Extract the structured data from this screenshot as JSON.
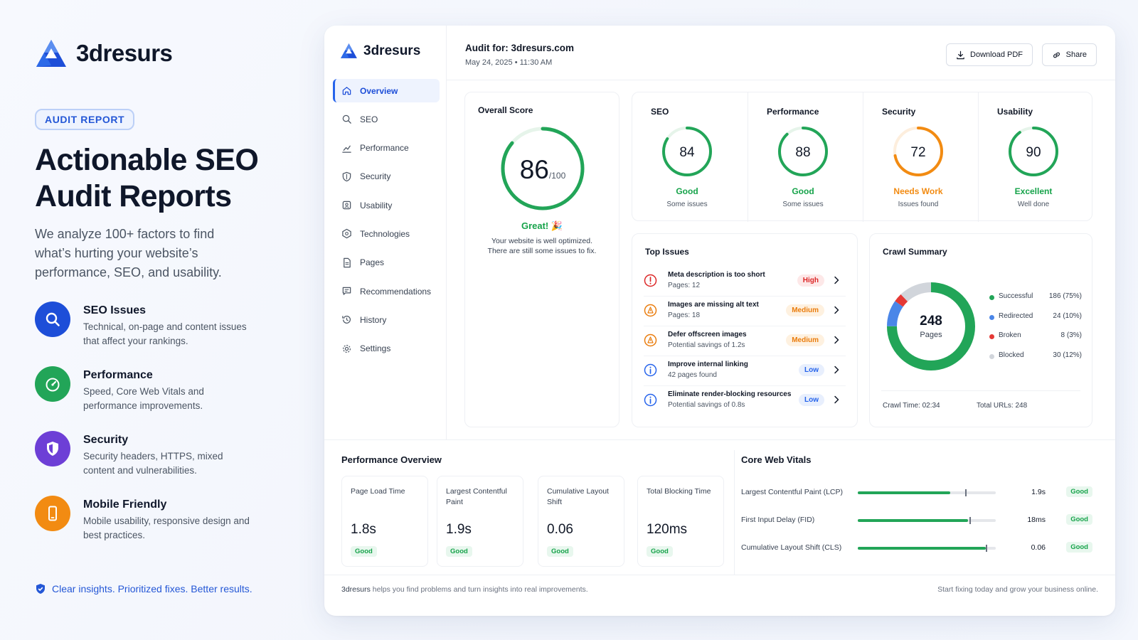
{
  "brand": {
    "name": "3dresurs"
  },
  "hero": {
    "badge": "AUDIT REPORT",
    "title_line1": "Actionable SEO",
    "title_line2": "Audit Reports",
    "subtitle": "We analyze 100+ factors to find what’s hurting your website’s performance, SEO, and usability."
  },
  "features": [
    {
      "title": "SEO Issues",
      "desc": "Technical, on-page and content issues that affect your rankings.",
      "icon": "magnifier-icon",
      "color": "#1d4ed8"
    },
    {
      "title": "Performance",
      "desc": "Speed, Core Web Vitals and performance improvements.",
      "icon": "speedometer-icon",
      "color": "#22a558"
    },
    {
      "title": "Security",
      "desc": "Security headers, HTTPS, mixed content and vulnerabilities.",
      "icon": "shield-icon",
      "color": "#6d3fd6"
    },
    {
      "title": "Mobile Friendly",
      "desc": "Mobile usability, responsive design and best practices.",
      "icon": "mobile-icon",
      "color": "#f28b12"
    }
  ],
  "tagline": "Clear insights. Prioritized fixes. Better results.",
  "sidebar": {
    "items": [
      {
        "label": "Overview",
        "icon": "home-icon",
        "active": true
      },
      {
        "label": "SEO",
        "icon": "search-icon"
      },
      {
        "label": "Performance",
        "icon": "chart-icon"
      },
      {
        "label": "Security",
        "icon": "shield-icon"
      },
      {
        "label": "Usability",
        "icon": "usability-icon"
      },
      {
        "label": "Technologies",
        "icon": "technologies-icon"
      },
      {
        "label": "Pages",
        "icon": "document-icon"
      },
      {
        "label": "Recommendations",
        "icon": "recommendations-icon"
      },
      {
        "label": "History",
        "icon": "history-icon"
      },
      {
        "label": "Settings",
        "icon": "gear-icon"
      }
    ]
  },
  "header": {
    "audit_for": "Audit for: 3dresurs.com",
    "date": "May 24, 2025  •  11:30 AM",
    "download_label": "Download PDF",
    "share_label": "Share"
  },
  "overall": {
    "title": "Overall Score",
    "score": "86",
    "max": "/100",
    "score_fraction": 0.86,
    "status": "Great! 🎉",
    "message_line1": "Your website is well optimized.",
    "message_line2": "There are still some issues to fix."
  },
  "scores": [
    {
      "title": "SEO",
      "score": "84",
      "fraction": 0.84,
      "status": "Good",
      "sub": "Some issues",
      "color": "#16a34a"
    },
    {
      "title": "Performance",
      "score": "88",
      "fraction": 0.88,
      "status": "Good",
      "sub": "Some issues",
      "color": "#16a34a"
    },
    {
      "title": "Security",
      "score": "72",
      "fraction": 0.72,
      "status": "Needs Work",
      "sub": "Issues found",
      "color": "#f28b12"
    },
    {
      "title": "Usability",
      "score": "90",
      "fraction": 0.9,
      "status": "Excellent",
      "sub": "Well done",
      "color": "#16a34a"
    }
  ],
  "top_issues": {
    "title": "Top Issues",
    "items": [
      {
        "title": "Meta description is too short",
        "sub": "Pages: 12",
        "severity": "High",
        "type": "error"
      },
      {
        "title": "Images are missing alt text",
        "sub": "Pages: 18",
        "severity": "Medium",
        "type": "warning"
      },
      {
        "title": "Defer offscreen images",
        "sub": "Potential savings of 1.2s",
        "severity": "Medium",
        "type": "warning"
      },
      {
        "title": "Improve internal linking",
        "sub": "42 pages found",
        "severity": "Low",
        "type": "info"
      },
      {
        "title": "Eliminate render-blocking resources",
        "sub": "Potential savings of 0.8s",
        "severity": "Low",
        "type": "info"
      }
    ]
  },
  "crawl": {
    "title": "Crawl Summary",
    "total": "248",
    "total_label": "Pages",
    "legend": [
      {
        "label": "Successful",
        "value": "186 (75%)",
        "count": 186,
        "color": "#22a558"
      },
      {
        "label": "Redirected",
        "value": "24 (10%)",
        "count": 24,
        "color": "#4a86e8"
      },
      {
        "label": "Broken",
        "value": "8 (3%)",
        "count": 8,
        "color": "#e53935"
      },
      {
        "label": "Blocked",
        "value": "30 (12%)",
        "count": 30,
        "color": "#d1d5db"
      }
    ],
    "crawl_time_label": "Crawl Time:",
    "crawl_time": "02:34",
    "total_urls_label": "Total URLs:",
    "total_urls": "248"
  },
  "performance_overview": {
    "title": "Performance Overview",
    "metrics": [
      {
        "label": "Page Load Time",
        "value": "1.8s",
        "status": "Good"
      },
      {
        "label": "Largest Contentful Paint",
        "value": "1.9s",
        "status": "Good"
      },
      {
        "label": "Cumulative Layout Shift",
        "value": "0.06",
        "status": "Good"
      },
      {
        "label": "Total Blocking Time",
        "value": "120ms",
        "status": "Good"
      }
    ]
  },
  "core_web_vitals": {
    "title": "Core Web Vitals",
    "rows": [
      {
        "label": "Largest Contentful Paint (LCP)",
        "value": "1.9s",
        "status": "Good",
        "fill": 0.67,
        "marker": 0.78
      },
      {
        "label": "First Input Delay (FID)",
        "value": "18ms",
        "status": "Good",
        "fill": 0.8,
        "marker": 0.81
      },
      {
        "label": "Cumulative Layout Shift (CLS)",
        "value": "0.06",
        "status": "Good",
        "fill": 0.93,
        "marker": 0.93
      }
    ]
  },
  "footer": {
    "left_brand": "3dresurs",
    "left_text": " helps you find problems and turn insights into real improvements.",
    "right_text": "Start fixing today and grow your business online."
  }
}
